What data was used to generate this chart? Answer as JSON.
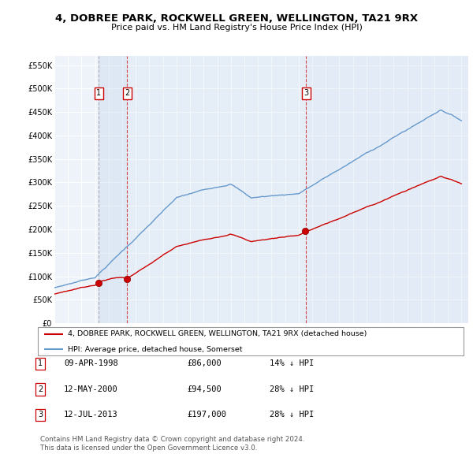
{
  "title": "4, DOBREE PARK, ROCKWELL GREEN, WELLINGTON, TA21 9RX",
  "subtitle": "Price paid vs. HM Land Registry's House Price Index (HPI)",
  "ylim": [
    0,
    570000
  ],
  "yticks": [
    0,
    50000,
    100000,
    150000,
    200000,
    250000,
    300000,
    350000,
    400000,
    450000,
    500000,
    550000
  ],
  "ytick_labels": [
    "£0",
    "£50K",
    "£100K",
    "£150K",
    "£200K",
    "£250K",
    "£300K",
    "£350K",
    "£400K",
    "£450K",
    "£500K",
    "£550K"
  ],
  "sale_prices": [
    86000,
    94500,
    197000
  ],
  "sale_labels": [
    "1",
    "2",
    "3"
  ],
  "sale_year_floats": [
    1998.27,
    2000.37,
    2013.54
  ],
  "legend_line1": "4, DOBREE PARK, ROCKWELL GREEN, WELLINGTON, TA21 9RX (detached house)",
  "legend_line2": "HPI: Average price, detached house, Somerset",
  "red_color": "#cc0000",
  "blue_color": "#6699cc",
  "table_rows": [
    {
      "num": "1",
      "date": "09-APR-1998",
      "price": "£86,000",
      "hpi": "14% ↓ HPI"
    },
    {
      "num": "2",
      "date": "12-MAY-2000",
      "price": "£94,500",
      "hpi": "28% ↓ HPI"
    },
    {
      "num": "3",
      "date": "12-JUL-2013",
      "price": "£197,000",
      "hpi": "28% ↓ HPI"
    }
  ],
  "footer": "Contains HM Land Registry data © Crown copyright and database right 2024.\nThis data is licensed under the Open Government Licence v3.0."
}
